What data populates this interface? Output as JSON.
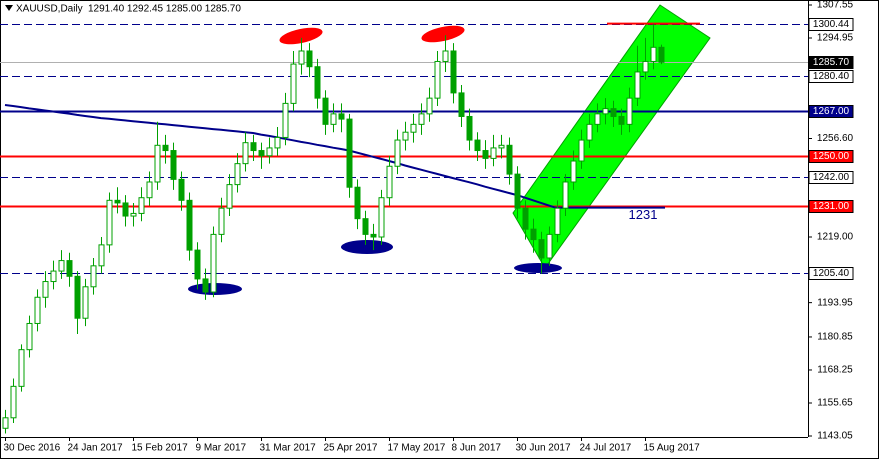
{
  "chart_data": {
    "type": "candlestick",
    "title": "XAUUSD,Daily",
    "header": "1291.40 1292.45 1285.00 1285.70",
    "color": "#00a000",
    "categories": [
      "30 Dec 2016",
      null,
      null,
      null,
      null,
      null,
      null,
      null,
      "24 Jan 2017",
      null,
      null,
      null,
      null,
      null,
      null,
      null,
      "15 Feb 2017",
      null,
      null,
      null,
      null,
      null,
      null,
      null,
      "9 Mar 2017",
      null,
      null,
      null,
      null,
      null,
      null,
      null,
      "31 Mar 2017",
      null,
      null,
      null,
      null,
      null,
      null,
      null,
      "25 Apr 2017",
      null,
      null,
      null,
      null,
      null,
      null,
      null,
      "17 May 2017",
      null,
      null,
      null,
      null,
      null,
      null,
      null,
      "8 Jun 2017",
      null,
      null,
      null,
      null,
      null,
      null,
      null,
      "30 Jun 2017",
      null,
      null,
      null,
      null,
      null,
      null,
      null,
      "24 Jul 2017",
      null,
      null,
      null,
      null,
      null,
      null,
      null,
      "15 Aug 2017",
      null,
      null
    ],
    "open": [
      1146,
      1150,
      1162,
      1176,
      1186,
      1196,
      1202,
      1206,
      1210,
      1204,
      1188,
      1200,
      1208,
      1216,
      1233,
      1232,
      1227,
      1228,
      1234,
      1240,
      1254,
      1252,
      1241,
      1233,
      1214,
      1203,
      1198,
      1220,
      1230,
      1239,
      1247,
      1255,
      1252,
      1250,
      1253,
      1257,
      1270,
      1285,
      1290,
      1284,
      1272,
      1262,
      1266,
      1264,
      1238,
      1226,
      1220,
      1219,
      1234,
      1246,
      1256,
      1259,
      1262,
      1266,
      1272,
      1286,
      1290,
      1274,
      1265,
      1256,
      1252,
      1249,
      1253,
      1254,
      1243,
      1230,
      1222,
      1218,
      1211,
      1220,
      1230,
      1240,
      1248,
      1256,
      1262,
      1266,
      1268,
      1265,
      1262,
      1272,
      1282,
      1286,
      1291.4
    ],
    "high": [
      1153,
      1165,
      1178,
      1189,
      1199,
      1206,
      1210,
      1214,
      1213,
      1206,
      1203,
      1211,
      1219,
      1236,
      1238,
      1235,
      1232,
      1238,
      1244,
      1263,
      1258,
      1255,
      1244,
      1236,
      1217,
      1207,
      1223,
      1234,
      1243,
      1251,
      1259,
      1258,
      1255,
      1257,
      1261,
      1274,
      1290,
      1295,
      1293,
      1287,
      1275,
      1270,
      1270,
      1266,
      1241,
      1229,
      1224,
      1237,
      1250,
      1260,
      1263,
      1266,
      1270,
      1276,
      1290,
      1296,
      1293,
      1277,
      1268,
      1259,
      1256,
      1258,
      1258,
      1257,
      1246,
      1233,
      1226,
      1221,
      1223,
      1233,
      1243,
      1252,
      1260,
      1266,
      1270,
      1272,
      1271,
      1268,
      1276,
      1292,
      1295,
      1300.4,
      1292.45
    ],
    "low": [
      1144,
      1148,
      1160,
      1173,
      1183,
      1192,
      1199,
      1203,
      1200,
      1182,
      1185,
      1197,
      1205,
      1213,
      1228,
      1223,
      1223,
      1225,
      1231,
      1237,
      1247,
      1237,
      1229,
      1210,
      1199,
      1195,
      1196,
      1217,
      1227,
      1236,
      1244,
      1248,
      1245,
      1247,
      1250,
      1254,
      1267,
      1281,
      1280,
      1268,
      1258,
      1259,
      1259,
      1234,
      1222,
      1216,
      1214,
      1216,
      1231,
      1243,
      1252,
      1255,
      1258,
      1263,
      1269,
      1282,
      1270,
      1261,
      1252,
      1248,
      1245,
      1246,
      1249,
      1239,
      1226,
      1218,
      1213,
      1205,
      1208,
      1217,
      1227,
      1237,
      1245,
      1253,
      1259,
      1262,
      1261,
      1258,
      1259,
      1269,
      1279,
      1283,
      1285
    ],
    "close": [
      1150,
      1162,
      1176,
      1186,
      1196,
      1202,
      1206,
      1210,
      1204,
      1188,
      1200,
      1208,
      1216,
      1233,
      1232,
      1227,
      1228,
      1234,
      1240,
      1254,
      1252,
      1241,
      1233,
      1214,
      1203,
      1198,
      1220,
      1230,
      1239,
      1247,
      1255,
      1252,
      1250,
      1253,
      1257,
      1270,
      1285,
      1290,
      1284,
      1272,
      1262,
      1266,
      1264,
      1238,
      1226,
      1220,
      1219,
      1234,
      1246,
      1256,
      1259,
      1262,
      1266,
      1272,
      1286,
      1290,
      1274,
      1265,
      1256,
      1252,
      1249,
      1253,
      1254,
      1243,
      1230,
      1222,
      1218,
      1211,
      1220,
      1230,
      1240,
      1248,
      1256,
      1262,
      1266,
      1268,
      1265,
      1262,
      1272,
      1282,
      1286,
      1291.4,
      1285.7
    ],
    "ma": {
      "color": "#00008b",
      "values": [
        1269.4,
        1269.0,
        1268.6,
        1268.1,
        1267.7,
        1267.3,
        1266.9,
        1266.5,
        1266.1,
        1265.6,
        1265.2,
        1264.8,
        1264.4,
        1264.1,
        1263.8,
        1263.5,
        1263.2,
        1262.9,
        1262.6,
        1262.3,
        1262.0,
        1261.7,
        1261.4,
        1261.1,
        1260.8,
        1260.5,
        1260.2,
        1259.9,
        1259.6,
        1259.3,
        1259.0,
        1258.7,
        1258.1,
        1257.6,
        1257.0,
        1256.5,
        1255.9,
        1255.3,
        1254.8,
        1254.2,
        1253.7,
        1253.1,
        1252.6,
        1252.0,
        1251.2,
        1250.4,
        1249.6,
        1248.8,
        1248.0,
        1247.2,
        1246.3,
        1245.5,
        1244.7,
        1243.9,
        1243.1,
        1242.3,
        1241.5,
        1240.7,
        1239.9,
        1239.1,
        1238.2,
        1237.4,
        1236.6,
        1235.8,
        1235.0,
        1234,
        1233,
        1232,
        1231,
        1230,
        null,
        null,
        null,
        null,
        null,
        null,
        null,
        null,
        null,
        null,
        null,
        null,
        null
      ]
    },
    "ylim": [
      1143.05,
      1307.55
    ],
    "yticks": [
      1307.55,
      1294.95,
      {
        "value": 1256.6,
        "label": "1256.60"
      },
      {
        "value": 1219,
        "label": "1219.00"
      },
      1193.95,
      1180.85,
      1168.25,
      1155.65,
      1143.05
    ],
    "levels": [
      {
        "value": 1300.44,
        "label": "1300.44",
        "color": "#00008b",
        "style": "dashed",
        "box": "#ffffff"
      },
      {
        "value": 1285.7,
        "label": "1285.70",
        "color": "#b0b0b0",
        "style": "solid",
        "box": "#000000"
      },
      {
        "value": 1280.4,
        "label": "1280.40",
        "color": "#00008b",
        "style": "dashed",
        "box": "#ffffff"
      },
      {
        "value": 1267,
        "label": "1267.00",
        "color": "#00008b",
        "style": "solid",
        "box": "#00008b"
      },
      {
        "value": 1250,
        "label": "1250.00",
        "color": "#ff0000",
        "style": "solid",
        "box": "#ff0000"
      },
      {
        "value": 1242,
        "label": "1242.00",
        "color": "#00008b",
        "style": "dashed",
        "box": "#ffffff"
      },
      {
        "value": 1231,
        "label": "1231.00",
        "color": "#ff0000",
        "style": "solid",
        "box": "#ff0000"
      },
      {
        "value": 1205.4,
        "label": "1205.40",
        "color": "#00008b",
        "style": "dashed",
        "box": "#ffffff"
      }
    ],
    "annotation": "1231"
  }
}
